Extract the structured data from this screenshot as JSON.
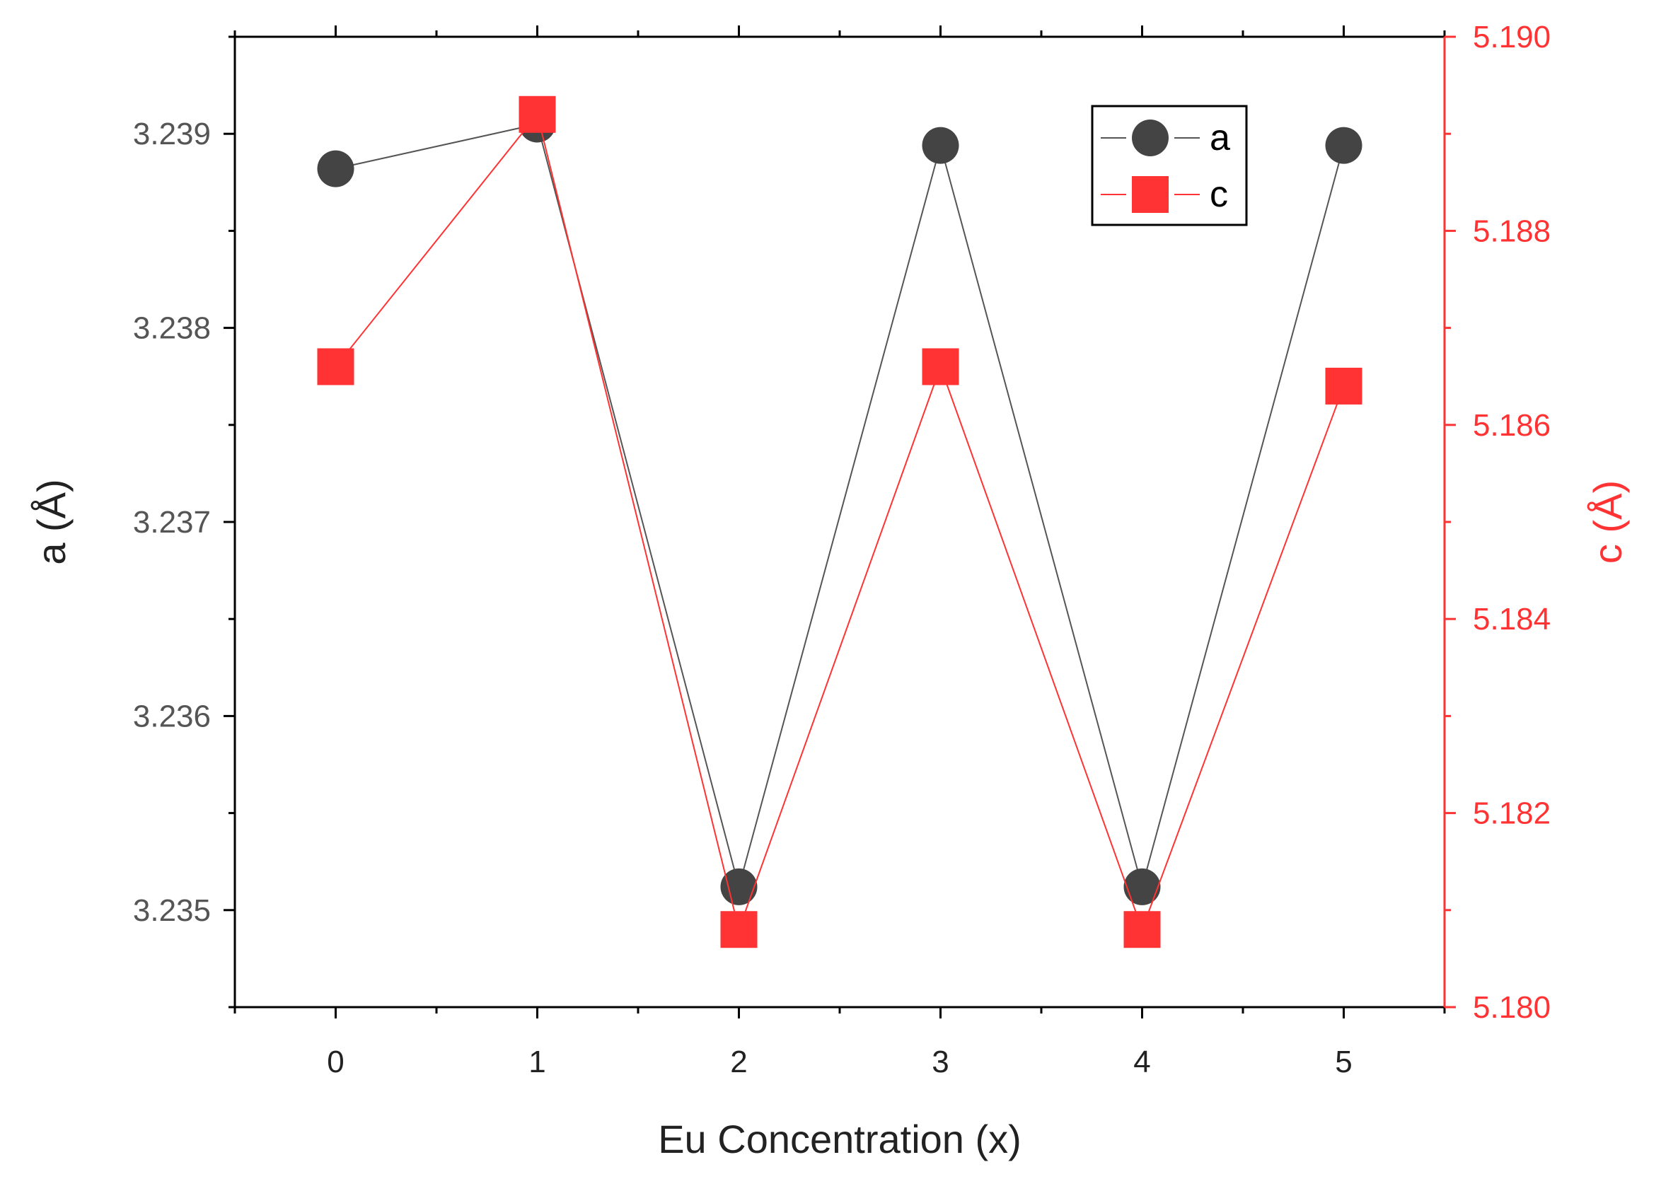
{
  "chart_data": {
    "type": "line",
    "xlabel": "Eu Concentration (x)",
    "x": [
      0,
      1,
      2,
      3,
      4,
      5
    ],
    "xlim": [
      -0.5,
      5.5
    ],
    "xticks": [
      "0",
      "1",
      "2",
      "3",
      "4",
      "5"
    ],
    "y_left": {
      "label": "a (Å)",
      "lim": [
        3.2345,
        3.2395
      ],
      "ticks": [
        "3.235",
        "3.236",
        "3.237",
        "3.238",
        "3.239"
      ],
      "color": "#555555"
    },
    "y_right": {
      "label": "c (Å)",
      "lim": [
        5.18,
        5.19
      ],
      "ticks": [
        "5.180",
        "5.182",
        "5.184",
        "5.186",
        "5.188",
        "5.190"
      ],
      "color": "#ff3333"
    },
    "series": [
      {
        "name": "a",
        "axis": "left",
        "marker": "circle",
        "marker_color": "#444444",
        "line_color": "#555555",
        "values": [
          3.23882,
          3.23905,
          3.23512,
          3.23894,
          3.23512,
          3.23894
        ]
      },
      {
        "name": "c",
        "axis": "right",
        "marker": "square",
        "marker_color": "#ff3333",
        "line_color": "#ff3333",
        "values": [
          5.1866,
          5.1892,
          5.1808,
          5.1866,
          5.1808,
          5.1864
        ]
      }
    ],
    "legend": "top-right",
    "grid": false
  }
}
